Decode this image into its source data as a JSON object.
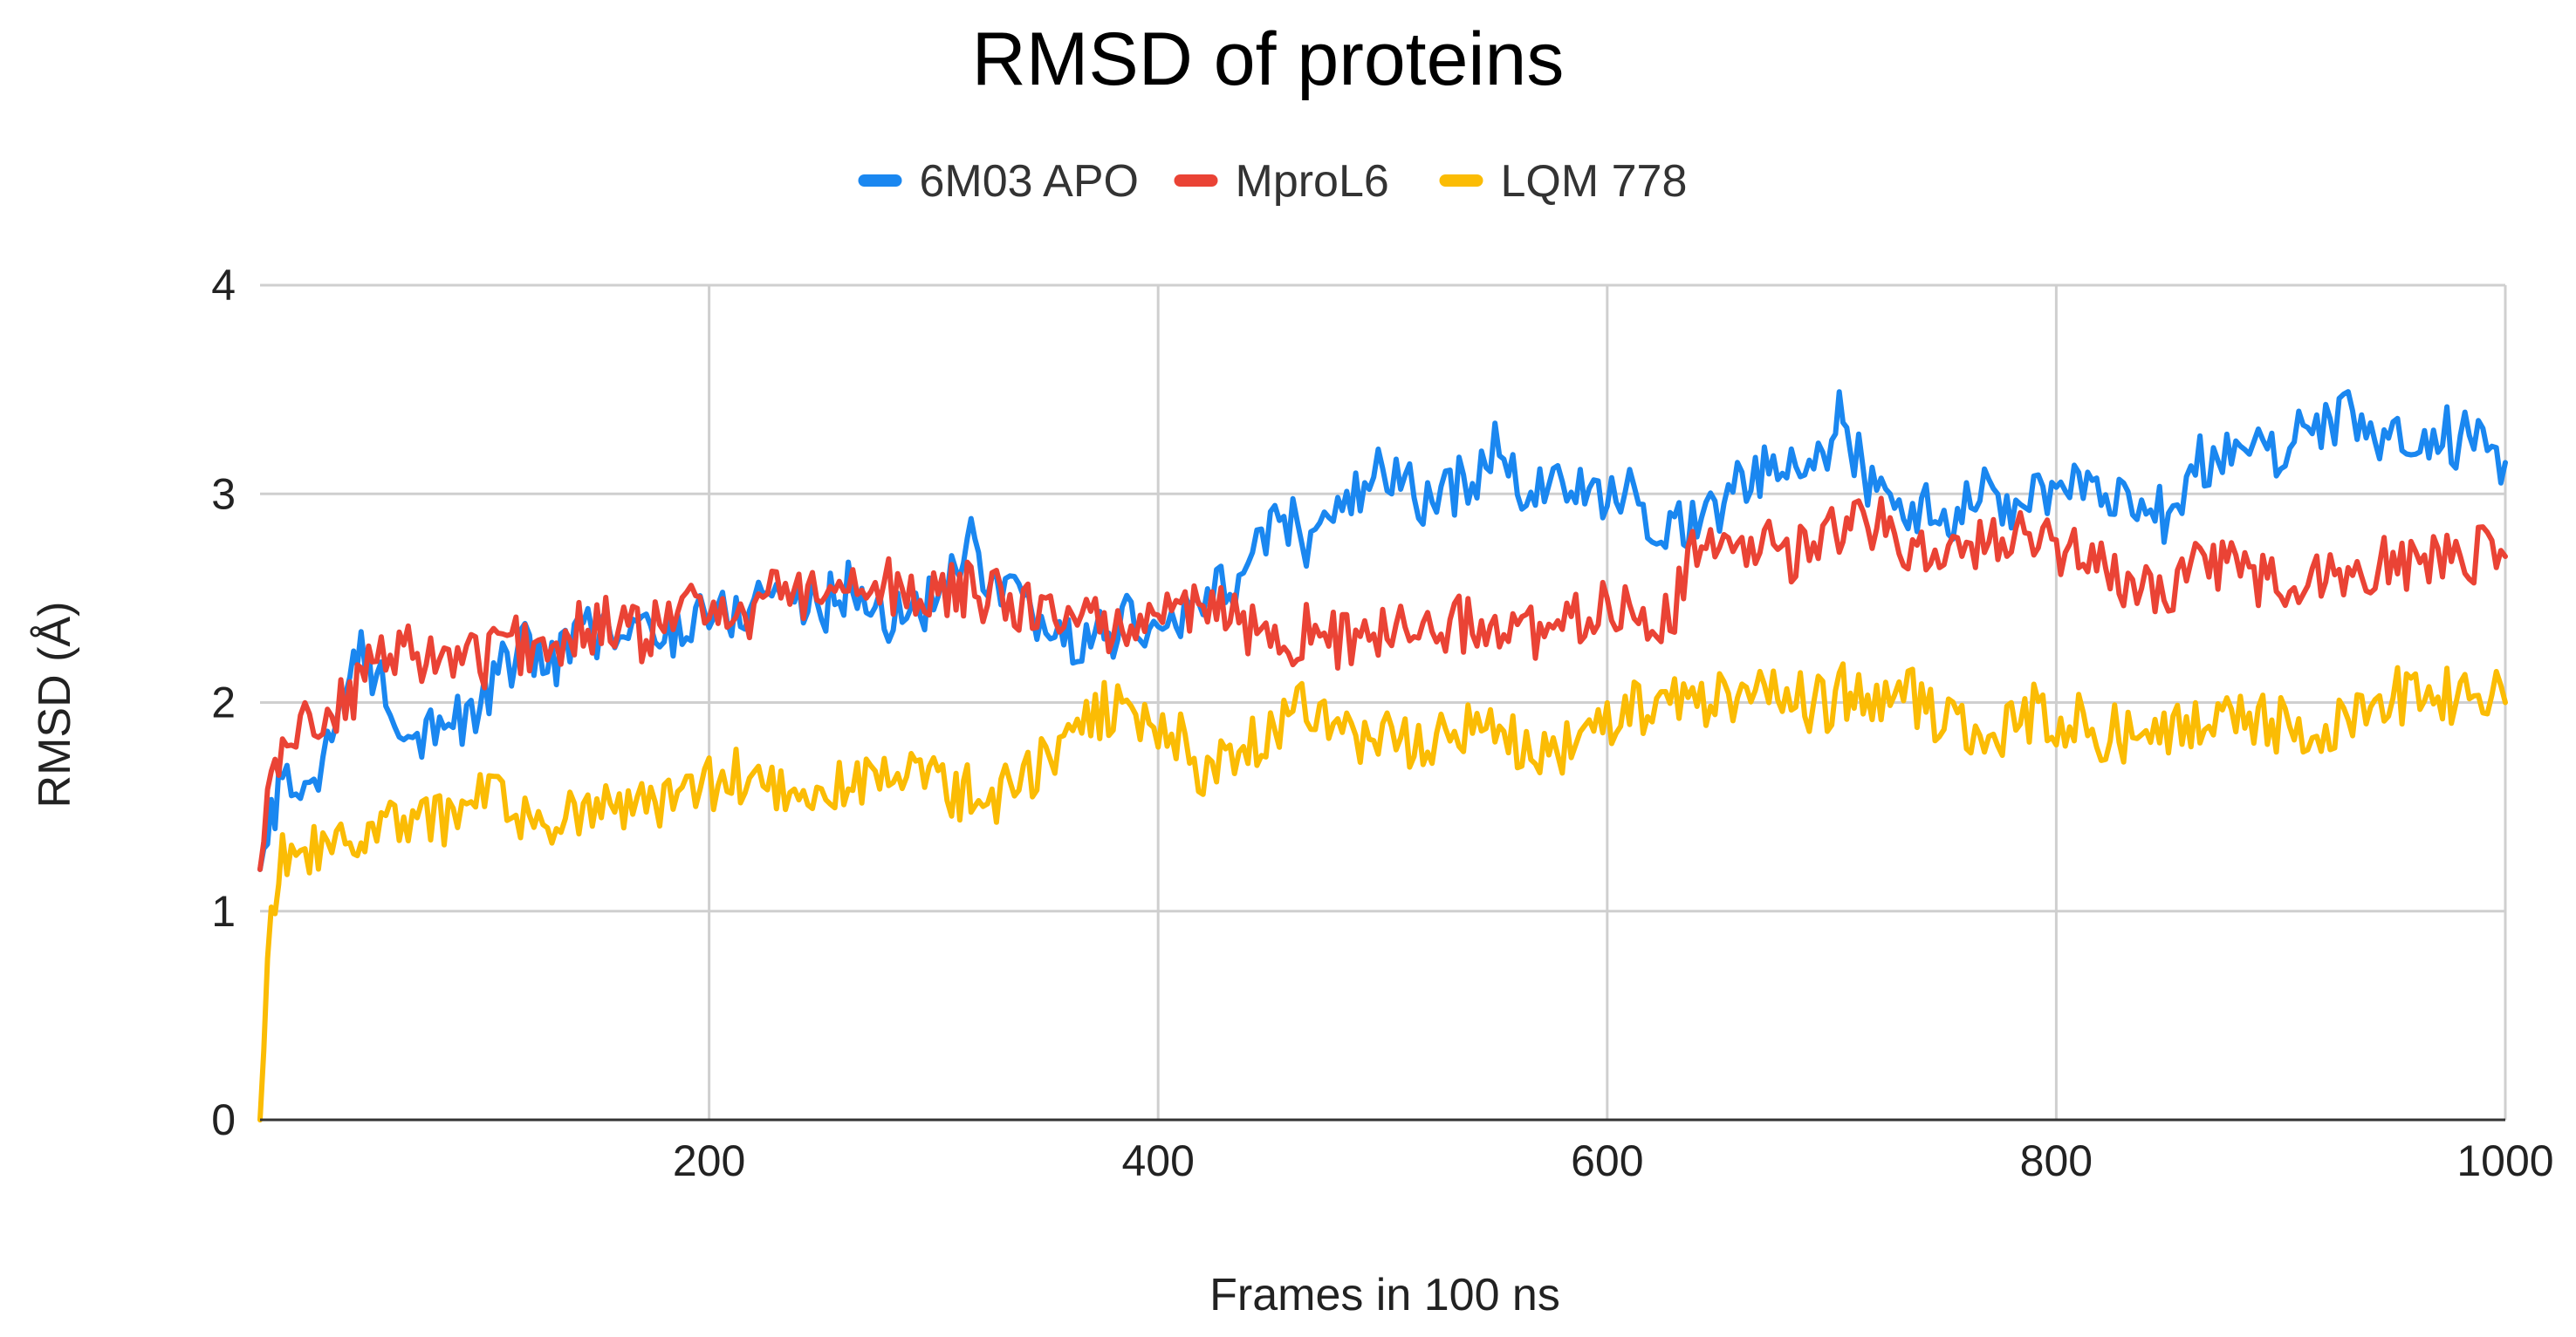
{
  "chart_data": {
    "type": "line",
    "title": "RMSD of proteins",
    "xlabel": "Frames in 100 ns",
    "ylabel": "RMSD (Å)",
    "xlim": [
      0,
      1000
    ],
    "ylim": [
      0,
      4
    ],
    "grid": true,
    "legend_position": "top-center",
    "x_ticks": [
      200,
      400,
      600,
      800,
      1000
    ],
    "y_ticks": [
      0,
      1,
      2,
      3,
      4
    ],
    "x_tick_labels": [
      "200",
      "400",
      "600",
      "800",
      "1000"
    ],
    "y_tick_labels": [
      "0",
      "1",
      "2",
      "3",
      "4"
    ],
    "x": [
      0,
      5,
      10,
      20,
      30,
      40,
      45,
      50,
      60,
      70,
      80,
      90,
      100,
      110,
      120,
      130,
      140,
      150,
      160,
      170,
      180,
      190,
      200,
      210,
      220,
      230,
      240,
      250,
      260,
      270,
      280,
      290,
      300,
      310,
      315,
      320,
      330,
      340,
      350,
      360,
      370,
      380,
      390,
      400,
      410,
      420,
      430,
      440,
      450,
      460,
      470,
      480,
      490,
      500,
      510,
      520,
      530,
      540,
      550,
      560,
      570,
      580,
      590,
      600,
      610,
      620,
      630,
      640,
      650,
      660,
      670,
      680,
      690,
      700,
      705,
      710,
      720,
      730,
      740,
      750,
      760,
      770,
      780,
      790,
      800,
      810,
      820,
      830,
      840,
      850,
      860,
      870,
      880,
      890,
      900,
      910,
      920,
      930,
      940,
      950,
      960,
      970,
      980,
      990,
      1000
    ],
    "series": [
      {
        "name": "6M03 APO",
        "color": "#1a87f0",
        "values": [
          1.2,
          1.5,
          1.55,
          1.6,
          1.8,
          2.0,
          2.4,
          2.15,
          2.0,
          1.85,
          1.95,
          1.9,
          2.0,
          2.2,
          2.25,
          2.2,
          2.3,
          2.35,
          2.3,
          2.35,
          2.3,
          2.4,
          2.45,
          2.4,
          2.5,
          2.55,
          2.5,
          2.45,
          2.55,
          2.5,
          2.4,
          2.45,
          2.5,
          2.6,
          2.9,
          2.6,
          2.5,
          2.45,
          2.35,
          2.3,
          2.3,
          2.35,
          2.4,
          2.3,
          2.4,
          2.45,
          2.6,
          2.55,
          2.9,
          2.85,
          2.75,
          2.9,
          3.0,
          3.1,
          3.05,
          2.95,
          3.0,
          3.1,
          3.2,
          3.05,
          3.0,
          3.1,
          2.95,
          2.95,
          3.0,
          2.9,
          2.8,
          2.9,
          2.95,
          3.05,
          3.1,
          3.1,
          3.15,
          3.2,
          3.45,
          3.2,
          3.0,
          2.95,
          2.95,
          2.85,
          2.95,
          3.0,
          2.95,
          2.95,
          3.05,
          3.0,
          3.05,
          3.0,
          3.0,
          2.85,
          3.1,
          3.2,
          3.25,
          3.3,
          3.2,
          3.3,
          3.3,
          3.4,
          3.2,
          3.3,
          3.25,
          3.3,
          3.25,
          3.35,
          3.15
        ]
      },
      {
        "name": "MproL6",
        "color": "#ea4335",
        "values": [
          1.2,
          1.6,
          1.8,
          1.9,
          1.95,
          2.0,
          2.1,
          2.2,
          2.2,
          2.25,
          2.2,
          2.25,
          2.2,
          2.3,
          2.25,
          2.3,
          2.35,
          2.35,
          2.4,
          2.3,
          2.4,
          2.45,
          2.4,
          2.5,
          2.4,
          2.6,
          2.5,
          2.6,
          2.55,
          2.6,
          2.55,
          2.5,
          2.5,
          2.55,
          2.55,
          2.5,
          2.5,
          2.45,
          2.45,
          2.4,
          2.4,
          2.35,
          2.4,
          2.45,
          2.4,
          2.5,
          2.4,
          2.35,
          2.35,
          2.3,
          2.35,
          2.3,
          2.3,
          2.35,
          2.35,
          2.3,
          2.35,
          2.4,
          2.35,
          2.35,
          2.3,
          2.35,
          2.4,
          2.45,
          2.5,
          2.4,
          2.45,
          2.75,
          2.75,
          2.7,
          2.75,
          2.7,
          2.75,
          2.8,
          2.8,
          2.85,
          2.85,
          2.8,
          2.7,
          2.75,
          2.7,
          2.8,
          2.85,
          2.8,
          2.75,
          2.7,
          2.65,
          2.6,
          2.55,
          2.5,
          2.7,
          2.65,
          2.65,
          2.6,
          2.55,
          2.6,
          2.6,
          2.65,
          2.6,
          2.7,
          2.65,
          2.7,
          2.65,
          2.75,
          2.7
        ]
      },
      {
        "name": "LQM 778",
        "color": "#fbbc04",
        "values": [
          0.0,
          1.0,
          1.25,
          1.3,
          1.3,
          1.35,
          1.4,
          1.45,
          1.4,
          1.4,
          1.45,
          1.45,
          1.55,
          1.5,
          1.45,
          1.45,
          1.5,
          1.5,
          1.45,
          1.5,
          1.5,
          1.55,
          1.6,
          1.65,
          1.6,
          1.55,
          1.55,
          1.6,
          1.6,
          1.6,
          1.65,
          1.65,
          1.6,
          1.55,
          1.6,
          1.55,
          1.55,
          1.6,
          1.75,
          1.85,
          1.9,
          2.0,
          1.95,
          1.9,
          1.85,
          1.65,
          1.75,
          1.8,
          1.85,
          2.0,
          1.95,
          1.9,
          1.85,
          1.85,
          1.8,
          1.8,
          1.85,
          1.9,
          1.85,
          1.8,
          1.8,
          1.75,
          1.85,
          1.9,
          1.95,
          2.0,
          2.0,
          2.0,
          2.05,
          2.0,
          2.1,
          2.05,
          2.0,
          2.0,
          2.05,
          2.0,
          2.0,
          2.05,
          2.0,
          1.9,
          1.85,
          1.85,
          1.9,
          1.95,
          1.9,
          1.9,
          1.85,
          1.85,
          1.9,
          1.85,
          1.9,
          1.9,
          1.95,
          1.9,
          1.9,
          1.9,
          1.85,
          1.9,
          1.95,
          2.05,
          2.0,
          2.05,
          2.0,
          2.05,
          2.0
        ]
      }
    ]
  }
}
